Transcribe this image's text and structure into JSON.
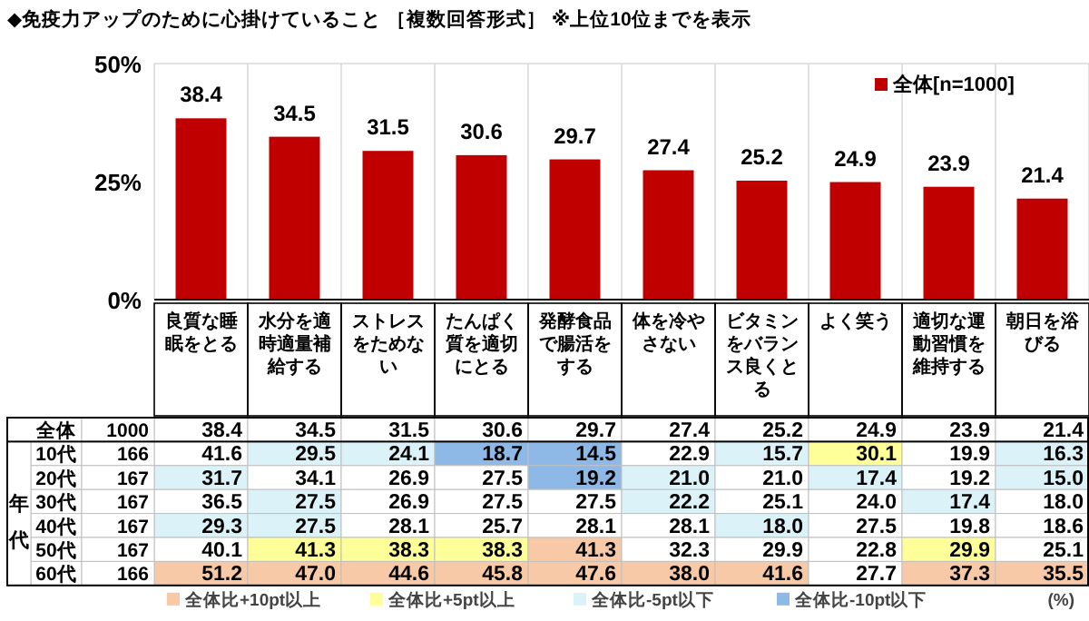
{
  "chart_data": [
    {
      "type": "bar",
      "title": "◆免疫力アップのために心掛けていること ［複数回答形式］ ※上位10位までを表示",
      "categories": [
        "良質な睡眠をとる",
        "水分を適時適量補給する",
        "ストレスをためない",
        "たんぱく質を適切にとる",
        "発酵食品で腸活をする",
        "体を冷やさない",
        "ビタミンをバランス良くとる",
        "よく笑う",
        "適切な運動習慣を維持する",
        "朝日を浴びる"
      ],
      "series": [
        {
          "name": "全体[n=1000]",
          "color": "#c00000",
          "values": [
            38.4,
            34.5,
            31.5,
            30.6,
            29.7,
            27.4,
            25.2,
            24.9,
            23.9,
            21.4
          ],
          "value_labels": [
            "38.4",
            "34.5",
            "31.5",
            "30.6",
            "29.7",
            "27.4",
            "25.2",
            "24.9",
            "23.9",
            "21.4"
          ]
        }
      ],
      "ylim": [
        0,
        50
      ],
      "yticks": [
        {
          "value": 0,
          "label": "0%"
        },
        {
          "value": 25,
          "label": "25%"
        },
        {
          "value": 50,
          "label": "50%"
        }
      ],
      "legend": "top right",
      "grid": "x"
    },
    {
      "type": "heatmap",
      "categories": [
        null,
        null,
        null,
        null,
        null,
        null,
        null,
        null,
        null,
        null
      ],
      "y_categories": [
        "全体",
        "10代",
        "20代",
        "30代",
        "40代",
        "50代",
        "60代"
      ],
      "y2_categories": [
        "1000",
        "166",
        "167",
        "167",
        "167",
        "167",
        "166"
      ],
      "ylabel": "年代",
      "cells": [
        [
          38.4,
          34.5,
          31.5,
          30.6,
          29.7,
          27.4,
          25.2,
          24.9,
          23.9,
          21.4
        ],
        [
          41.6,
          29.5,
          24.1,
          18.7,
          14.5,
          22.9,
          15.7,
          30.1,
          19.9,
          16.3
        ],
        [
          31.7,
          34.1,
          26.9,
          27.5,
          19.2,
          21.0,
          21.0,
          17.4,
          19.2,
          15.0
        ],
        [
          36.5,
          27.5,
          26.9,
          27.5,
          27.5,
          22.2,
          25.1,
          24.0,
          17.4,
          18.0
        ],
        [
          29.3,
          27.5,
          28.1,
          25.7,
          28.1,
          28.1,
          18.0,
          27.5,
          19.8,
          18.6
        ],
        [
          40.1,
          41.3,
          38.3,
          38.3,
          41.3,
          32.3,
          29.9,
          22.8,
          29.9,
          25.1
        ],
        [
          51.2,
          47.0,
          44.6,
          45.8,
          47.6,
          38.0,
          41.6,
          27.7,
          37.3,
          35.5
        ]
      ],
      "cell_labels": [
        [
          "38.4",
          "34.5",
          "31.5",
          "30.6",
          "29.7",
          "27.4",
          "25.2",
          "24.9",
          "23.9",
          "21.4"
        ],
        [
          "41.6",
          "29.5",
          "24.1",
          "18.7",
          "14.5",
          "22.9",
          "15.7",
          "30.1",
          "19.9",
          "16.3"
        ],
        [
          "31.7",
          "34.1",
          "26.9",
          "27.5",
          "19.2",
          "21.0",
          "21.0",
          "17.4",
          "19.2",
          "15.0"
        ],
        [
          "36.5",
          "27.5",
          "26.9",
          "27.5",
          "27.5",
          "22.2",
          "25.1",
          "24.0",
          "17.4",
          "18.0"
        ],
        [
          "29.3",
          "27.5",
          "28.1",
          "25.7",
          "28.1",
          "28.1",
          "18.0",
          "27.5",
          "19.8",
          "18.6"
        ],
        [
          "40.1",
          "41.3",
          "38.3",
          "38.3",
          "41.3",
          "32.3",
          "29.9",
          "22.8",
          "29.9",
          "25.1"
        ],
        [
          "51.2",
          "47.0",
          "44.6",
          "45.8",
          "47.6",
          "38.0",
          "41.6",
          "27.7",
          "37.3",
          "35.5"
        ]
      ],
      "annotations": [
        "全体比+10pt以上",
        "全体比+5pt以上",
        "全体比-5pt以下",
        "全体比-10pt以下",
        "(%)"
      ]
    }
  ]
}
